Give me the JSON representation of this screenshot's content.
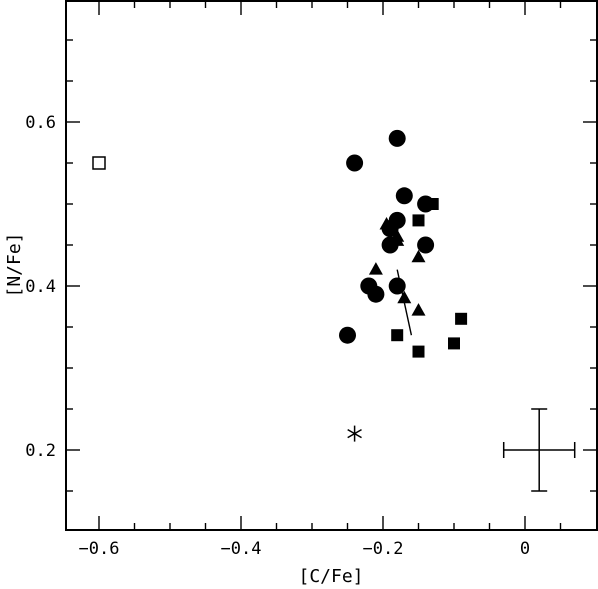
{
  "chart_data": {
    "type": "scatter",
    "title": "",
    "xlabel": "[C/Fe]",
    "ylabel": "[N/Fe]",
    "xlim": [
      -0.65,
      0.07
    ],
    "ylim": [
      0.12,
      0.75
    ],
    "x_major_ticks": [
      -0.6,
      -0.4,
      -0.2,
      0
    ],
    "x_tick_labels": [
      "−0.6",
      "−0.4",
      "−0.2",
      "0"
    ],
    "y_major_ticks": [
      0.2,
      0.4,
      0.6
    ],
    "y_tick_labels": [
      "0.2",
      "0.4",
      "0.6"
    ],
    "grid": false,
    "legend": false,
    "series": [
      {
        "marker": "filled-circle",
        "points": [
          {
            "x": -0.18,
            "y": 0.58
          },
          {
            "x": -0.24,
            "y": 0.55
          },
          {
            "x": -0.17,
            "y": 0.51
          },
          {
            "x": -0.14,
            "y": 0.5
          },
          {
            "x": -0.18,
            "y": 0.48
          },
          {
            "x": -0.19,
            "y": 0.47
          },
          {
            "x": -0.19,
            "y": 0.45
          },
          {
            "x": -0.14,
            "y": 0.45
          },
          {
            "x": -0.22,
            "y": 0.4
          },
          {
            "x": -0.21,
            "y": 0.39
          },
          {
            "x": -0.18,
            "y": 0.4
          },
          {
            "x": -0.25,
            "y": 0.34
          }
        ]
      },
      {
        "marker": "filled-square",
        "points": [
          {
            "x": -0.13,
            "y": 0.5
          },
          {
            "x": -0.15,
            "y": 0.48
          },
          {
            "x": -0.18,
            "y": 0.34
          },
          {
            "x": -0.15,
            "y": 0.32
          },
          {
            "x": -0.09,
            "y": 0.36
          },
          {
            "x": -0.1,
            "y": 0.33
          }
        ]
      },
      {
        "marker": "filled-triangle",
        "points": [
          {
            "x": -0.195,
            "y": 0.475
          },
          {
            "x": -0.18,
            "y": 0.46
          },
          {
            "x": -0.18,
            "y": 0.455
          },
          {
            "x": -0.15,
            "y": 0.435
          },
          {
            "x": -0.21,
            "y": 0.42
          },
          {
            "x": -0.17,
            "y": 0.385
          },
          {
            "x": -0.15,
            "y": 0.37
          }
        ]
      },
      {
        "marker": "open-square",
        "points": [
          {
            "x": -0.6,
            "y": 0.55
          }
        ]
      },
      {
        "marker": "asterisk",
        "points": [
          {
            "x": -0.24,
            "y": 0.22
          }
        ]
      }
    ],
    "line_segments": [
      {
        "x1": -0.18,
        "y1": 0.42,
        "x2": -0.16,
        "y2": 0.34
      }
    ],
    "error_bar": {
      "x": 0.02,
      "y": 0.2,
      "xerr": 0.05,
      "yerr": 0.05
    }
  }
}
